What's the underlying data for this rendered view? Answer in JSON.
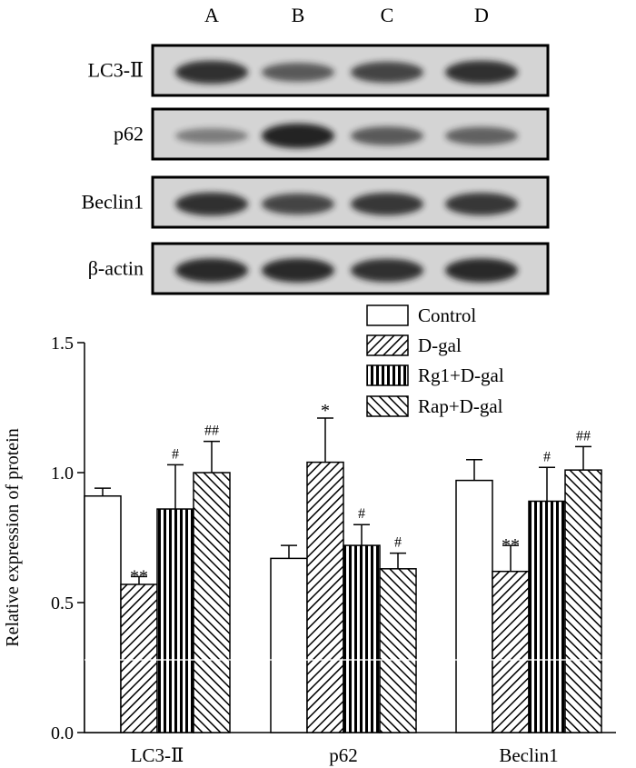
{
  "blot_panel": {
    "lanes": [
      "A",
      "B",
      "C",
      "D"
    ],
    "rows": [
      {
        "label": "LC3-Ⅱ",
        "intensity": [
          0.85,
          0.55,
          0.7,
          0.85
        ]
      },
      {
        "label": "p62",
        "intensity": [
          0.3,
          0.95,
          0.55,
          0.5
        ]
      },
      {
        "label": "Beclin1",
        "intensity": [
          0.85,
          0.7,
          0.8,
          0.8
        ]
      },
      {
        "label": "β-actin",
        "intensity": [
          0.9,
          0.9,
          0.85,
          0.9
        ]
      }
    ]
  },
  "colors": {
    "bar_outline": "#000000",
    "blot_background": "#d4d4d4",
    "band": "#1a1a1a",
    "control_fill": "#ffffff"
  },
  "chart_data": {
    "type": "bar",
    "categories": [
      "LC3-Ⅱ",
      "p62",
      "Beclin1"
    ],
    "series": [
      {
        "name": "Control",
        "pattern": "empty",
        "values": [
          0.91,
          0.67,
          0.97
        ],
        "errors": [
          0.03,
          0.05,
          0.08
        ],
        "marks": [
          "",
          "",
          ""
        ]
      },
      {
        "name": "D-gal",
        "pattern": "diagonal-up",
        "values": [
          0.57,
          1.04,
          0.62
        ],
        "errors": [
          0.03,
          0.17,
          0.1
        ],
        "marks": [
          "**",
          "*",
          "**"
        ]
      },
      {
        "name": "Rg1+D-gal",
        "pattern": "vertical",
        "values": [
          0.86,
          0.72,
          0.89
        ],
        "errors": [
          0.17,
          0.08,
          0.13
        ],
        "marks": [
          "#",
          "#",
          "#"
        ]
      },
      {
        "name": "Rap+D-gal",
        "pattern": "diagonal-down",
        "values": [
          1.0,
          0.63,
          1.01
        ],
        "errors": [
          0.12,
          0.06,
          0.09
        ],
        "marks": [
          "##",
          "#",
          "##"
        ]
      }
    ],
    "ylabel": "Relative expression of protein",
    "xlabel": "",
    "ylim": [
      0,
      1.5
    ],
    "yticks": [
      "0.0",
      "0.5",
      "1.0",
      "1.5"
    ],
    "grid": false,
    "legend_position": "top-right"
  }
}
